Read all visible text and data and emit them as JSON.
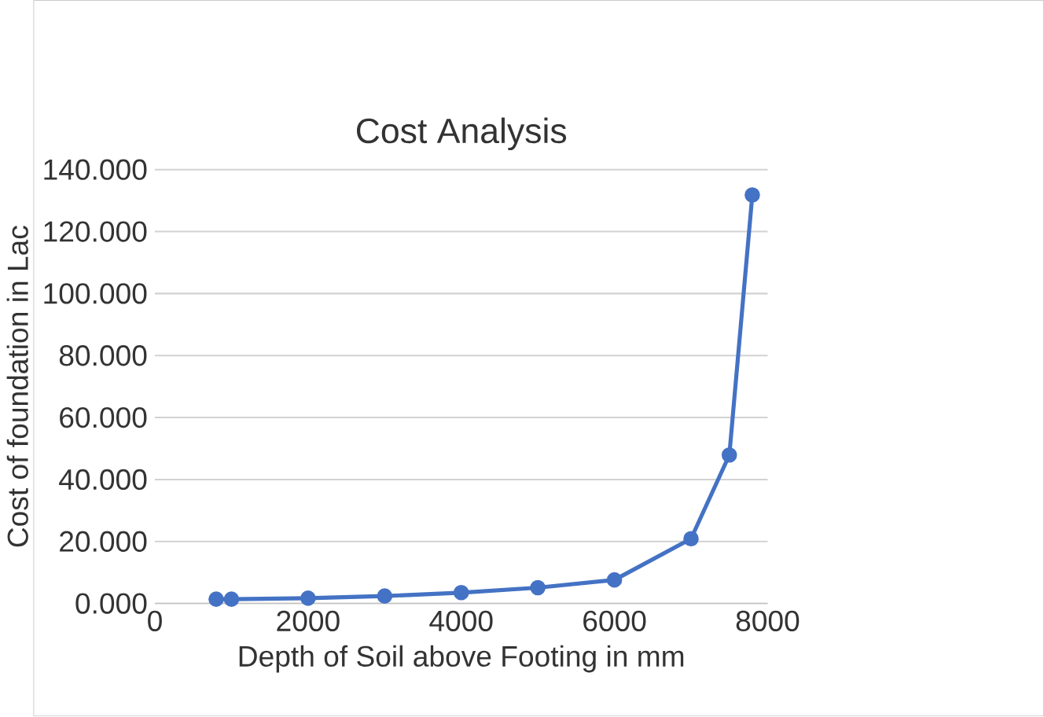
{
  "chart_data": {
    "type": "line",
    "title": "Cost Analysis",
    "xlabel": "Depth of Soil above Footing in mm",
    "ylabel": "Cost of foundation in Lac",
    "x": [
      800,
      1000,
      2000,
      3000,
      4000,
      5000,
      6000,
      7000,
      7500,
      7800
    ],
    "values": [
      1.4,
      1.4,
      1.7,
      2.4,
      3.5,
      5.1,
      7.6,
      20.9,
      47.9,
      131.8
    ],
    "color": "#4472c4",
    "marker": "circle",
    "grid": "y",
    "xlim": [
      0,
      8000
    ],
    "xticks": [
      0,
      2000,
      4000,
      6000,
      8000
    ],
    "ylim": [
      0,
      140
    ],
    "yticks": [
      {
        "value": 0,
        "label": "0.000"
      },
      {
        "value": 20,
        "label": "20.000"
      },
      {
        "value": 40,
        "label": "40.000"
      },
      {
        "value": 60,
        "label": "60.000"
      },
      {
        "value": 80,
        "label": "80.000"
      },
      {
        "value": 100,
        "label": "100.000"
      },
      {
        "value": 120,
        "label": "120.000"
      },
      {
        "value": 140,
        "label": "140.000"
      }
    ]
  }
}
